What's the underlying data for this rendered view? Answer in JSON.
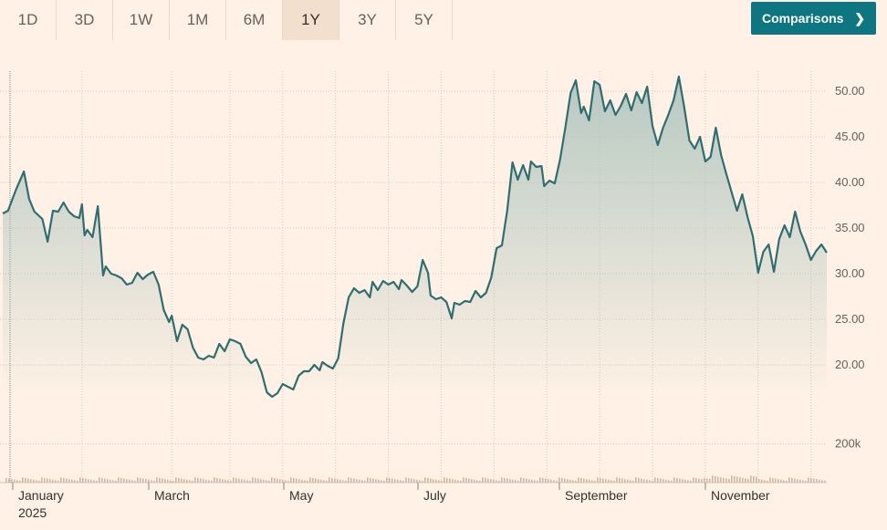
{
  "range_buttons": [
    {
      "label": "1D",
      "active": false
    },
    {
      "label": "3D",
      "active": false
    },
    {
      "label": "1W",
      "active": false
    },
    {
      "label": "1M",
      "active": false
    },
    {
      "label": "6M",
      "active": false
    },
    {
      "label": "1Y",
      "active": true
    },
    {
      "label": "3Y",
      "active": false
    },
    {
      "label": "5Y",
      "active": false
    }
  ],
  "comparisons": {
    "label": "Comparisons",
    "icon": "chevron-right-icon"
  },
  "colors": {
    "line": "#2f6e70",
    "area_top": "#a9c2bc",
    "volume": "#cdb8a6",
    "grid": "#d6c8bb"
  },
  "chart_data": {
    "type": "area",
    "title": "",
    "xlabel": "",
    "ylabel": "",
    "ylim": [
      16,
      51.8
    ],
    "y_ticks": [
      "50.00",
      "45.00",
      "40.00",
      "35.00",
      "30.00",
      "25.00",
      "20.00"
    ],
    "y_tick_values": [
      50,
      45,
      40,
      35,
      30,
      25,
      20
    ],
    "volume_tick": {
      "label": "200k",
      "value": 200000
    },
    "volume_max": 420000,
    "x_ticks": [
      {
        "label": "January",
        "sublabel": "2025",
        "month": 0.5
      },
      {
        "label": "March",
        "sublabel": "",
        "month": 2.3
      },
      {
        "label": "May",
        "sublabel": "",
        "month": 4.3
      },
      {
        "label": "July",
        "sublabel": "",
        "month": 6.3
      },
      {
        "label": "September",
        "sublabel": "",
        "month": 8.3
      },
      {
        "label": "November",
        "sublabel": "",
        "month": 10.3
      }
    ],
    "series": [
      {
        "values": [
          [
            0.0,
            36.6
          ],
          [
            0.1,
            36.9
          ],
          [
            0.25,
            39.2
          ],
          [
            0.4,
            41.2
          ],
          [
            0.5,
            38.2
          ],
          [
            0.6,
            36.8
          ],
          [
            0.75,
            36.0
          ],
          [
            0.85,
            33.5
          ],
          [
            0.95,
            36.9
          ],
          [
            1.05,
            36.8
          ],
          [
            1.15,
            37.8
          ],
          [
            1.25,
            36.8
          ],
          [
            1.35,
            36.3
          ],
          [
            1.45,
            36.1
          ],
          [
            1.5,
            37.6
          ],
          [
            1.55,
            34.2
          ],
          [
            1.6,
            34.8
          ],
          [
            1.7,
            34.0
          ],
          [
            1.8,
            37.4
          ],
          [
            1.9,
            29.8
          ],
          [
            1.95,
            30.8
          ],
          [
            2.05,
            30.0
          ],
          [
            2.15,
            29.8
          ],
          [
            2.25,
            29.5
          ],
          [
            2.35,
            28.8
          ],
          [
            2.45,
            29.0
          ],
          [
            2.55,
            30.1
          ],
          [
            2.65,
            29.4
          ],
          [
            2.75,
            29.9
          ],
          [
            2.85,
            30.2
          ],
          [
            2.95,
            28.8
          ],
          [
            3.05,
            26.0
          ],
          [
            3.15,
            24.7
          ],
          [
            3.2,
            25.4
          ],
          [
            3.3,
            22.6
          ],
          [
            3.4,
            24.4
          ],
          [
            3.5,
            23.9
          ],
          [
            3.6,
            21.9
          ],
          [
            3.7,
            20.8
          ],
          [
            3.8,
            20.6
          ],
          [
            3.9,
            21.0
          ],
          [
            4.0,
            20.8
          ],
          [
            4.1,
            22.3
          ],
          [
            4.2,
            21.5
          ],
          [
            4.3,
            22.8
          ],
          [
            4.4,
            22.6
          ],
          [
            4.5,
            22.3
          ],
          [
            4.6,
            20.9
          ],
          [
            4.7,
            20.2
          ],
          [
            4.8,
            20.6
          ],
          [
            4.9,
            19.2
          ],
          [
            5.0,
            17.0
          ],
          [
            5.1,
            16.5
          ],
          [
            5.2,
            16.9
          ],
          [
            5.3,
            17.9
          ],
          [
            5.4,
            17.6
          ],
          [
            5.5,
            17.3
          ],
          [
            5.6,
            18.8
          ],
          [
            5.7,
            19.3
          ],
          [
            5.8,
            19.3
          ],
          [
            5.9,
            20.0
          ],
          [
            6.0,
            19.4
          ],
          [
            6.05,
            20.3
          ],
          [
            6.15,
            19.9
          ],
          [
            6.25,
            19.6
          ],
          [
            6.35,
            20.7
          ],
          [
            6.45,
            24.6
          ],
          [
            6.55,
            27.4
          ],
          [
            6.65,
            28.4
          ],
          [
            6.75,
            27.9
          ],
          [
            6.85,
            28.2
          ],
          [
            6.95,
            27.4
          ],
          [
            7.0,
            29.1
          ],
          [
            7.1,
            28.2
          ],
          [
            7.2,
            29.2
          ],
          [
            7.3,
            28.8
          ],
          [
            7.4,
            29.1
          ],
          [
            7.5,
            28.3
          ],
          [
            7.55,
            29.3
          ],
          [
            7.65,
            28.7
          ],
          [
            7.75,
            28.0
          ],
          [
            7.85,
            28.6
          ],
          [
            7.95,
            31.5
          ],
          [
            8.05,
            30.1
          ],
          [
            8.1,
            27.6
          ],
          [
            8.2,
            27.2
          ],
          [
            8.3,
            27.4
          ],
          [
            8.4,
            26.9
          ],
          [
            8.5,
            25.1
          ],
          [
            8.55,
            26.8
          ],
          [
            8.65,
            26.6
          ],
          [
            8.75,
            27.0
          ],
          [
            8.85,
            26.9
          ],
          [
            8.95,
            28.1
          ],
          [
            9.05,
            27.4
          ],
          [
            9.15,
            27.9
          ],
          [
            9.25,
            29.6
          ],
          [
            9.35,
            32.8
          ],
          [
            9.45,
            33.1
          ],
          [
            9.55,
            36.9
          ],
          [
            9.65,
            42.2
          ],
          [
            9.75,
            40.3
          ],
          [
            9.85,
            41.9
          ],
          [
            9.95,
            40.3
          ],
          [
            10.0,
            42.3
          ],
          [
            10.1,
            41.7
          ],
          [
            10.2,
            41.8
          ],
          [
            10.25,
            39.6
          ],
          [
            10.35,
            40.2
          ],
          [
            10.45,
            39.9
          ],
          [
            10.55,
            42.5
          ],
          [
            10.65,
            46.0
          ],
          [
            10.75,
            49.8
          ],
          [
            10.85,
            51.2
          ],
          [
            10.95,
            47.6
          ],
          [
            11.0,
            48.3
          ],
          [
            11.1,
            46.8
          ],
          [
            11.2,
            51.1
          ],
          [
            11.3,
            50.7
          ],
          [
            11.4,
            47.8
          ],
          [
            11.5,
            49.0
          ],
          [
            11.6,
            47.4
          ],
          [
            11.7,
            48.4
          ],
          [
            11.8,
            49.7
          ],
          [
            11.9,
            47.9
          ],
          [
            12.0,
            49.9
          ],
          [
            12.1,
            48.7
          ],
          [
            12.2,
            50.5
          ],
          [
            12.3,
            46.2
          ],
          [
            12.4,
            44.1
          ],
          [
            12.5,
            46.0
          ],
          [
            12.6,
            47.4
          ],
          [
            12.7,
            49.0
          ],
          [
            12.8,
            51.6
          ],
          [
            12.9,
            48.3
          ],
          [
            13.0,
            44.6
          ],
          [
            13.1,
            43.7
          ],
          [
            13.2,
            45.0
          ],
          [
            13.3,
            42.3
          ],
          [
            13.4,
            42.8
          ],
          [
            13.5,
            46.0
          ],
          [
            13.6,
            43.0
          ],
          [
            13.7,
            40.9
          ],
          [
            13.8,
            38.9
          ],
          [
            13.9,
            36.9
          ],
          [
            14.0,
            38.7
          ],
          [
            14.1,
            36.2
          ],
          [
            14.2,
            34.1
          ],
          [
            14.3,
            30.1
          ],
          [
            14.4,
            32.4
          ],
          [
            14.5,
            33.2
          ],
          [
            14.6,
            30.2
          ],
          [
            14.7,
            33.8
          ],
          [
            14.8,
            35.3
          ],
          [
            14.9,
            34.0
          ],
          [
            15.0,
            36.8
          ],
          [
            15.1,
            34.6
          ],
          [
            15.2,
            33.2
          ],
          [
            15.3,
            31.5
          ],
          [
            15.4,
            32.5
          ],
          [
            15.5,
            33.2
          ],
          [
            15.6,
            32.3
          ]
        ]
      }
    ]
  }
}
